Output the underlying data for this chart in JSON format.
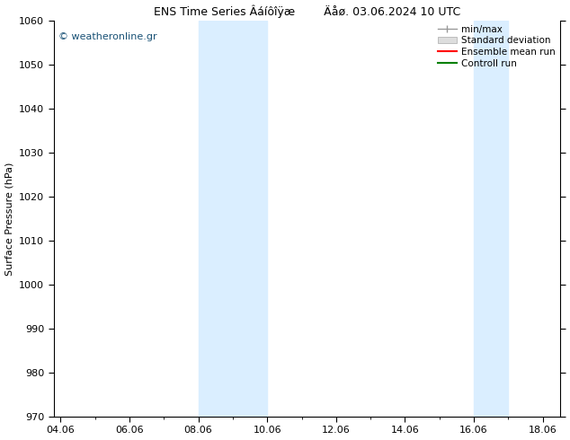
{
  "title": "ENS Time Series Âáíôîÿæ        Äåø. 03.06.2024 10 UTC",
  "ylabel": "Surface Pressure (hPa)",
  "ylim": [
    970,
    1060
  ],
  "yticks": [
    970,
    980,
    990,
    1000,
    1010,
    1020,
    1030,
    1040,
    1050,
    1060
  ],
  "xtick_labels": [
    "04.06",
    "06.06",
    "08.06",
    "10.06",
    "12.06",
    "14.06",
    "16.06",
    "18.06"
  ],
  "xtick_positions": [
    0,
    2,
    4,
    6,
    8,
    10,
    12,
    14
  ],
  "xlim": [
    -0.2,
    14.5
  ],
  "shaded_bands": [
    {
      "x_start": 4.0,
      "x_end": 6.0
    },
    {
      "x_start": 12.0,
      "x_end": 13.0
    }
  ],
  "shaded_color": "#daeeff",
  "copyright_text": "© weatheronline.gr",
  "copyright_color": "#1a5276",
  "legend_labels": [
    "min/max",
    "Standard deviation",
    "Ensemble mean run",
    "Controll run"
  ],
  "legend_colors": [
    "#999999",
    "#cccccc",
    "#ff0000",
    "#008000"
  ],
  "bg_color": "#ffffff",
  "title_fontsize": 9,
  "label_fontsize": 8,
  "tick_fontsize": 8,
  "legend_fontsize": 7.5
}
